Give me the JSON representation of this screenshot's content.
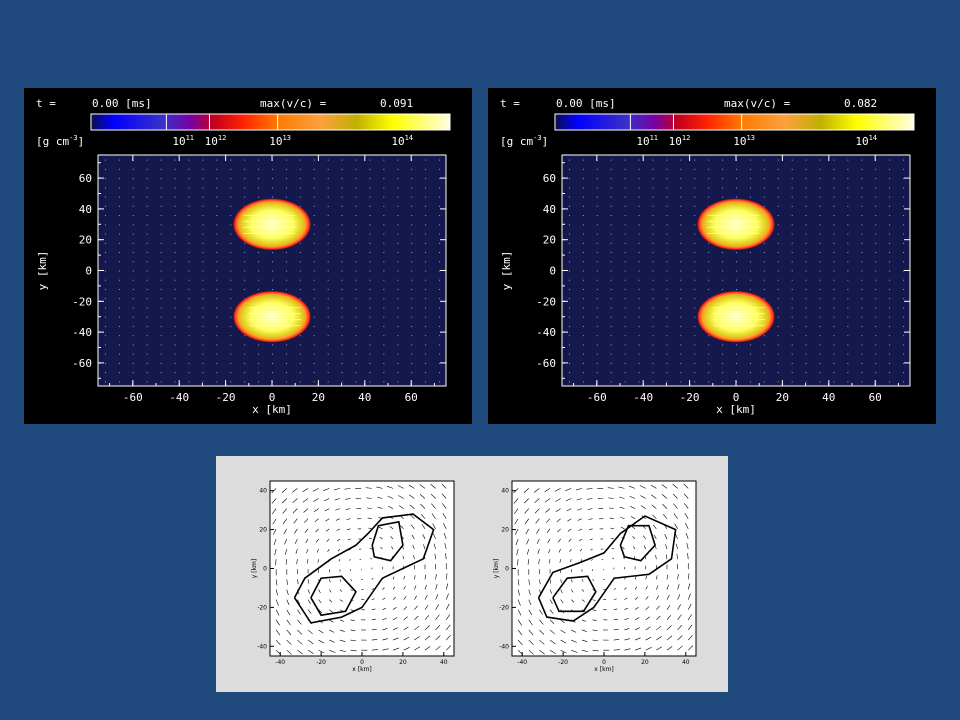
{
  "colors": {
    "background": "#1f497d",
    "panel_background": "#000000",
    "plot_background": "#14184d",
    "bottom_background": "#dcdcdc"
  },
  "chart_data": [
    {
      "type": "heatmap",
      "header": {
        "t_label": "t  =",
        "t_value": "0.00 [ms]",
        "vmax_label": "max(v/c) =",
        "vmax_value": "0.091"
      },
      "colorbar": {
        "unit": "[g cm",
        "unit_exp": "-3",
        "unit_close": "]",
        "ticks": [
          {
            "base": "10",
            "exp": "11"
          },
          {
            "base": "10",
            "exp": "12"
          },
          {
            "base": "10",
            "exp": "13"
          },
          {
            "base": "10",
            "exp": "14"
          }
        ]
      },
      "xlabel": "x [km]",
      "ylabel": "y [km]",
      "xlim": [
        -75,
        75
      ],
      "ylim": [
        -75,
        75
      ],
      "xticks": [
        "-60",
        "-40",
        "-20",
        "0",
        "20",
        "40",
        "60"
      ],
      "yticks": [
        "60",
        "40",
        "20",
        "0",
        "-20",
        "-40",
        "-60"
      ],
      "stars": [
        {
          "x": 0,
          "y": 30,
          "r": 13,
          "flow": "left"
        },
        {
          "x": 0,
          "y": -30,
          "r": 13,
          "flow": "right"
        }
      ]
    },
    {
      "type": "heatmap",
      "header": {
        "t_label": "t  =",
        "t_value": "0.00 [ms]",
        "vmax_label": "max(v/c) =",
        "vmax_value": "0.082"
      },
      "colorbar": {
        "unit": "[g cm",
        "unit_exp": "-3",
        "unit_close": "]",
        "ticks": [
          {
            "base": "10",
            "exp": "11"
          },
          {
            "base": "10",
            "exp": "12"
          },
          {
            "base": "10",
            "exp": "13"
          },
          {
            "base": "10",
            "exp": "14"
          }
        ]
      },
      "xlabel": "x [km]",
      "ylabel": "y [km]",
      "xlim": [
        -75,
        75
      ],
      "ylim": [
        -75,
        75
      ],
      "xticks": [
        "-60",
        "-40",
        "-20",
        "0",
        "20",
        "40",
        "60"
      ],
      "yticks": [
        "60",
        "40",
        "20",
        "0",
        "-20",
        "-40",
        "-60"
      ],
      "stars": [
        {
          "x": 0,
          "y": 30,
          "r": 13,
          "flow": "left"
        },
        {
          "x": 0,
          "y": -30,
          "r": 13,
          "flow": "right"
        }
      ]
    },
    {
      "type": "scatter",
      "xlabel": "x [km]",
      "ylabel": "y [km]",
      "xlim": [
        -45,
        45
      ],
      "ylim": [
        -45,
        45
      ],
      "xticks": [
        "-40",
        "-20",
        "0",
        "20",
        "40"
      ],
      "yticks": [
        "40",
        "20",
        "0",
        "-20",
        "-40"
      ],
      "contours": "two density peaks near (-15,-15) and (15,15)"
    },
    {
      "type": "scatter",
      "xlabel": "x [km]",
      "ylabel": "y [km]",
      "xlim": [
        -45,
        45
      ],
      "ylim": [
        -45,
        45
      ],
      "xticks": [
        "-40",
        "-20",
        "0",
        "20",
        "40"
      ],
      "yticks": [
        "40",
        "20",
        "0",
        "-20",
        "-40"
      ],
      "contours": "two density peaks near (-15,-15) and (15,15)"
    }
  ]
}
